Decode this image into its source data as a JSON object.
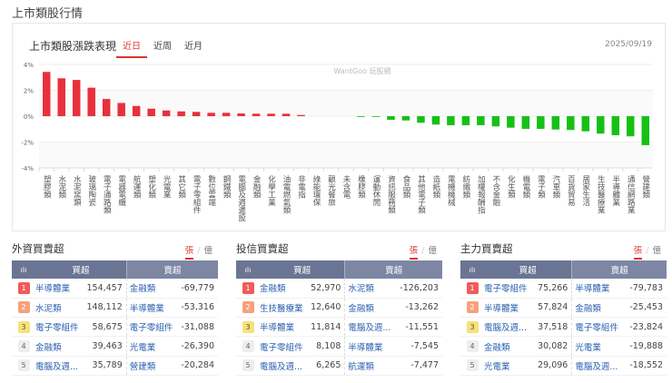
{
  "page_title": "上市類股行情",
  "chart_card": {
    "title": "上市類股漲跌表現",
    "tabs": [
      "近日",
      "近周",
      "近月"
    ],
    "active_tab": 0,
    "date": "2025/09/19",
    "watermark": "WantGoo 玩股網"
  },
  "chart_data": {
    "type": "bar",
    "categories": [
      "塑膠類",
      "水泥類",
      "水泥窯類",
      "玻璃陶瓷",
      "電子通路類",
      "電器電纜",
      "航運類",
      "塑化類",
      "光電業",
      "其它類",
      "電子零組件",
      "數位雲端",
      "鋼鐵類",
      "電腦及週邊設",
      "金融類",
      "化學工業",
      "油電燃氣類",
      "非電指",
      "綠能環保",
      "觀光餐旅",
      "未含電",
      "橡膠類",
      "運動休閒",
      "資訊服務類",
      "食品類",
      "其他電子類",
      "造紙類",
      "電機機械",
      "紡織類",
      "加權報酬指",
      "不含金融",
      "化生類",
      "機電類",
      "電子類",
      "汽車類",
      "百貨貿易",
      "居家生活",
      "生技醫療業",
      "半導體業",
      "通信網路業",
      "營建類"
    ],
    "values": [
      3.42,
      2.93,
      2.8,
      2.2,
      1.33,
      1.02,
      0.79,
      0.58,
      0.44,
      0.37,
      0.33,
      0.26,
      0.26,
      0.21,
      0.19,
      0.19,
      0.19,
      0.09,
      0,
      0,
      0,
      -0.02,
      -0.04,
      -0.28,
      -0.33,
      -0.51,
      -0.65,
      -0.7,
      -0.7,
      -0.7,
      -0.79,
      -0.89,
      -0.98,
      -0.98,
      -1.03,
      -1.07,
      -1.17,
      -1.35,
      -1.47,
      -1.56,
      -2.24
    ],
    "yticks": [
      "4%",
      "2%",
      "0%",
      "-2%",
      "-4%"
    ],
    "ylim": [
      -4,
      4
    ],
    "grid": true,
    "colors": {
      "up": "#e8313c",
      "down": "#17c017"
    }
  },
  "panels": [
    {
      "title": "外資買賣超",
      "unit_on": "張",
      "unit_off": "億",
      "buy_header": "買超",
      "sell_header": "賣超",
      "rows": [
        {
          "rank": "1",
          "buy": "半導體業",
          "buy_val": "154,457",
          "sell": "金融類",
          "sell_val": "-69,779"
        },
        {
          "rank": "2",
          "buy": "水泥類",
          "buy_val": "148,112",
          "sell": "半導體業",
          "sell_val": "-53,316"
        },
        {
          "rank": "3",
          "buy": "電子零組件",
          "buy_val": "58,675",
          "sell": "電子零組件",
          "sell_val": "-31,088"
        },
        {
          "rank": "4",
          "buy": "金融類",
          "buy_val": "39,463",
          "sell": "光電業",
          "sell_val": "-26,390"
        },
        {
          "rank": "5",
          "buy": "電腦及週...",
          "buy_val": "35,789",
          "sell": "營建類",
          "sell_val": "-20,284"
        }
      ]
    },
    {
      "title": "投信買賣超",
      "unit_on": "張",
      "unit_off": "億",
      "buy_header": "買超",
      "sell_header": "賣超",
      "rows": [
        {
          "rank": "1",
          "buy": "金融類",
          "buy_val": "52,970",
          "sell": "水泥類",
          "sell_val": "-126,203"
        },
        {
          "rank": "2",
          "buy": "生技醫療業",
          "buy_val": "12,640",
          "sell": "金融類",
          "sell_val": "-13,262"
        },
        {
          "rank": "3",
          "buy": "半導體業",
          "buy_val": "11,814",
          "sell": "電腦及週...",
          "sell_val": "-11,551"
        },
        {
          "rank": "4",
          "buy": "電子零組件",
          "buy_val": "8,108",
          "sell": "半導體業",
          "sell_val": "-7,545"
        },
        {
          "rank": "5",
          "buy": "電腦及週...",
          "buy_val": "6,265",
          "sell": "航運類",
          "sell_val": "-7,477"
        }
      ]
    },
    {
      "title": "主力買賣超",
      "unit_on": "張",
      "unit_off": "億",
      "buy_header": "買超",
      "sell_header": "賣超",
      "rows": [
        {
          "rank": "1",
          "buy": "電子零組件",
          "buy_val": "75,266",
          "sell": "半導體業",
          "sell_val": "-79,783"
        },
        {
          "rank": "2",
          "buy": "半導體業",
          "buy_val": "57,824",
          "sell": "金融類",
          "sell_val": "-25,453"
        },
        {
          "rank": "3",
          "buy": "電腦及週...",
          "buy_val": "37,518",
          "sell": "電子零組件",
          "sell_val": "-23,824"
        },
        {
          "rank": "4",
          "buy": "金融類",
          "buy_val": "30,082",
          "sell": "光電業",
          "sell_val": "-19,888"
        },
        {
          "rank": "5",
          "buy": "光電業",
          "buy_val": "29,096",
          "sell": "電腦及週...",
          "sell_val": "-18,552"
        }
      ]
    }
  ]
}
